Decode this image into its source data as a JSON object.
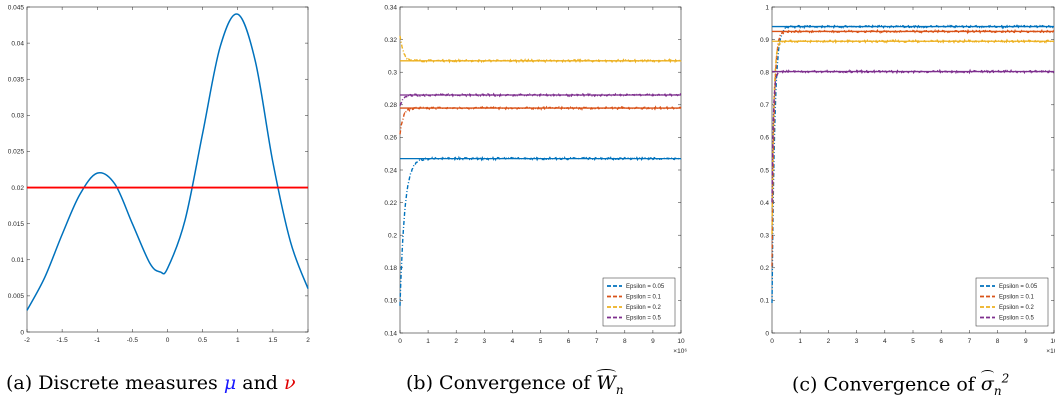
{
  "chart_data": [
    {
      "type": "line",
      "title": "",
      "xlabel": "",
      "ylabel": "",
      "xlim": [
        -2,
        2
      ],
      "ylim": [
        0,
        0.045
      ],
      "x_ticks": [
        "-2",
        "-1.5",
        "-1",
        "-0.5",
        "0",
        "0.5",
        "1",
        "1.5",
        "2"
      ],
      "y_ticks": [
        "0",
        "0.005",
        "0.01",
        "0.015",
        "0.02",
        "0.025",
        "0.03",
        "0.035",
        "0.04",
        "0.045"
      ],
      "series": [
        {
          "color": "#0072BD",
          "style": "solid",
          "x": [
            -2,
            -1.75,
            -1.5,
            -1.25,
            -1,
            -0.75,
            -0.5,
            -0.25,
            -0.1,
            0,
            0.25,
            0.5,
            0.75,
            1,
            1.25,
            1.5,
            1.75,
            2
          ],
          "y": [
            0.003,
            0.0075,
            0.0135,
            0.019,
            0.022,
            0.0205,
            0.015,
            0.0095,
            0.0083,
            0.0088,
            0.0155,
            0.0275,
            0.0395,
            0.044,
            0.0375,
            0.0235,
            0.0125,
            0.006
          ]
        },
        {
          "color": "#FF0000",
          "style": "solid",
          "x": [
            -2,
            2
          ],
          "y": [
            0.02,
            0.02
          ]
        }
      ],
      "caption": {
        "prefix": "(a)  Discrete measures ",
        "mu": "μ",
        "and": " and ",
        "nu": "ν"
      }
    },
    {
      "type": "line",
      "title": "",
      "xlabel": "",
      "ylabel": "",
      "xlim": [
        0,
        10
      ],
      "ylim": [
        0.14,
        0.34
      ],
      "x_exponent": "×10⁶",
      "x_ticks": [
        "0",
        "1",
        "2",
        "3",
        "4",
        "5",
        "6",
        "7",
        "8",
        "9",
        "10"
      ],
      "y_ticks": [
        "0.14",
        "0.16",
        "0.18",
        "0.2",
        "0.22",
        "0.24",
        "0.26",
        "0.28",
        "0.3",
        "0.32",
        "0.34"
      ],
      "legend_position": "bottom-right",
      "series": [
        {
          "name": "Epsilon = 0.05",
          "color": "#0072BD",
          "start": 0.157,
          "limit": 0.247,
          "rate": 2.0
        },
        {
          "name": "Epsilon = 0.1",
          "color": "#D95319",
          "start": 0.262,
          "limit": 0.278,
          "rate": 3.0
        },
        {
          "name": "Epsilon = 0.2",
          "color": "#EDB120",
          "start": 0.323,
          "limit": 0.307,
          "rate": 3.0
        },
        {
          "name": "Epsilon = 0.5",
          "color": "#7E2F8E",
          "start": 0.279,
          "limit": 0.286,
          "rate": 3.0
        }
      ],
      "caption": {
        "prefix": "(b)  Convergence of ",
        "symbol": "W",
        "sub": "n"
      }
    },
    {
      "type": "line",
      "title": "",
      "xlabel": "",
      "ylabel": "",
      "xlim": [
        0,
        10
      ],
      "ylim": [
        0,
        1
      ],
      "x_exponent": "×10⁶",
      "x_ticks": [
        "0",
        "1",
        "2",
        "3",
        "4",
        "5",
        "6",
        "7",
        "8",
        "9",
        "10"
      ],
      "y_ticks": [
        "0",
        "0.1",
        "0.2",
        "0.3",
        "0.4",
        "0.5",
        "0.6",
        "0.7",
        "0.8",
        "0.9",
        "1"
      ],
      "legend_position": "bottom-right",
      "series": [
        {
          "name": "Epsilon = 0.05",
          "color": "#0072BD",
          "start": 0.09,
          "limit": 0.94,
          "rate": 3.5
        },
        {
          "name": "Epsilon = 0.1",
          "color": "#D95319",
          "start": 0.2,
          "limit": 0.925,
          "rate": 4.5
        },
        {
          "name": "Epsilon = 0.2",
          "color": "#EDB120",
          "start": 0.3,
          "limit": 0.895,
          "rate": 5.5
        },
        {
          "name": "Epsilon = 0.5",
          "color": "#7E2F8E",
          "start": 0.4,
          "limit": 0.802,
          "rate": 7.0
        }
      ],
      "caption": {
        "prefix": "(c)  Convergence of ",
        "symbol": "σ",
        "sub": "n",
        "sup": "2"
      }
    }
  ]
}
